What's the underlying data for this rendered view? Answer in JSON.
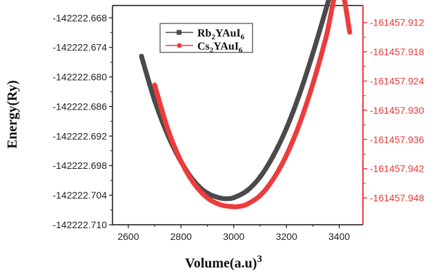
{
  "chart_data": {
    "type": "line",
    "xlabel": "Volume(a.u)",
    "xlabel_sup": "3",
    "ylabel_left": "Energy(Ry)",
    "xlim": [
      2540,
      3490
    ],
    "xticks": [
      2600,
      2800,
      3000,
      3200,
      3400
    ],
    "ylim_left": [
      -142222.71,
      -142222.6655
    ],
    "yticks_left": [
      "-142222.668",
      "-142222.674",
      "-142222.680",
      "-142222.686",
      "-142222.692",
      "-142222.698",
      "-142222.704",
      "-142222.710"
    ],
    "ylim_right": [
      -161457.9535,
      -161457.9085
    ],
    "yticks_right": [
      "-161457.912",
      "-161457.918",
      "-161457.924",
      "-161457.930",
      "-161457.936",
      "-161457.942",
      "-161457.948"
    ],
    "legend_position": "top-left",
    "grid": false,
    "series": [
      {
        "name": "Rb2YAuI6",
        "legend_base": "Rb",
        "legend_sub1": "2",
        "legend_mid": "YAuI",
        "legend_sub2": "6",
        "axis": "left",
        "color": "#4a4a4a",
        "marker": "square",
        "x": [
          2650,
          2700,
          2750,
          2800,
          2850,
          2900,
          2950,
          2975,
          3000,
          3050,
          3100,
          3150,
          3200,
          3250,
          3300,
          3350,
          3375
        ],
        "y": [
          -142222.6758,
          -142222.6848,
          -142222.6918,
          -142222.6972,
          -142222.7012,
          -142222.7036,
          -142222.7046,
          -142222.7047,
          -142222.7045,
          -142222.7031,
          -142222.7003,
          -142222.696,
          -142222.6904,
          -142222.6834,
          -142222.6752,
          -142222.6662,
          -142222.6615
        ]
      },
      {
        "name": "Cs2YAuI6",
        "legend_base": "Cs",
        "legend_sub1": "2",
        "legend_mid": "YAuI",
        "legend_sub2": "6",
        "axis": "right",
        "color": "#ee3b3b",
        "marker": "circle",
        "x": [
          2700,
          2750,
          2800,
          2850,
          2900,
          2950,
          3000,
          3025,
          3050,
          3100,
          3150,
          3200,
          3250,
          3300,
          3350,
          3400,
          3440
        ],
        "y": [
          -161457.9248,
          -161457.9339,
          -161457.9405,
          -161457.9451,
          -161457.948,
          -161457.9494,
          -161457.9498,
          -161457.9497,
          -161457.9493,
          -161457.9475,
          -161457.9441,
          -161457.9392,
          -161457.9327,
          -161457.9246,
          -161457.915,
          -161457.904,
          -161457.914
        ]
      }
    ]
  }
}
